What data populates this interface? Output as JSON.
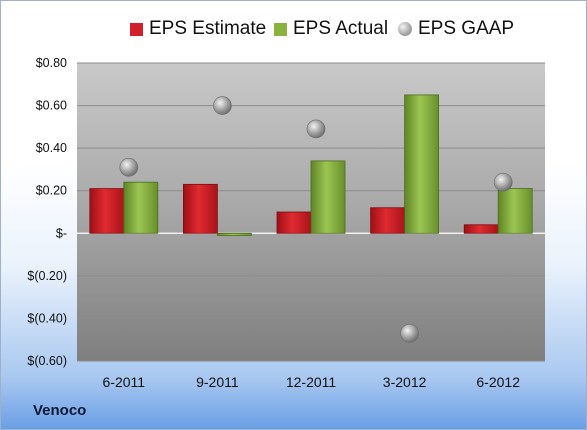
{
  "company": "Venoco",
  "colors": {
    "estimate": "#d2202a",
    "actual": "#8ab33e",
    "gaap": "#a8a8a8"
  },
  "chart_data": {
    "type": "bar",
    "categories": [
      "6-2011",
      "9-2011",
      "12-2011",
      "3-2012",
      "6-2012"
    ],
    "series": [
      {
        "name": "EPS Estimate",
        "kind": "bar",
        "values": [
          0.21,
          0.23,
          0.1,
          0.12,
          0.04
        ]
      },
      {
        "name": "EPS Actual",
        "kind": "bar",
        "values": [
          0.24,
          -0.01,
          0.34,
          0.65,
          0.21
        ]
      },
      {
        "name": "EPS GAAP",
        "kind": "scatter",
        "values": [
          0.31,
          0.6,
          0.49,
          -0.47,
          0.24
        ]
      }
    ],
    "ylim": [
      -0.6,
      0.8
    ],
    "yticks": [
      0.8,
      0.6,
      0.4,
      0.2,
      0,
      -0.2,
      -0.4,
      -0.6
    ],
    "ytick_labels": [
      "$0.80",
      "$0.60",
      "$0.40",
      "$0.20",
      "$-",
      "$(0.20)",
      "$(0.40)",
      "$(0.60)"
    ],
    "grid": true,
    "legend": "top"
  }
}
